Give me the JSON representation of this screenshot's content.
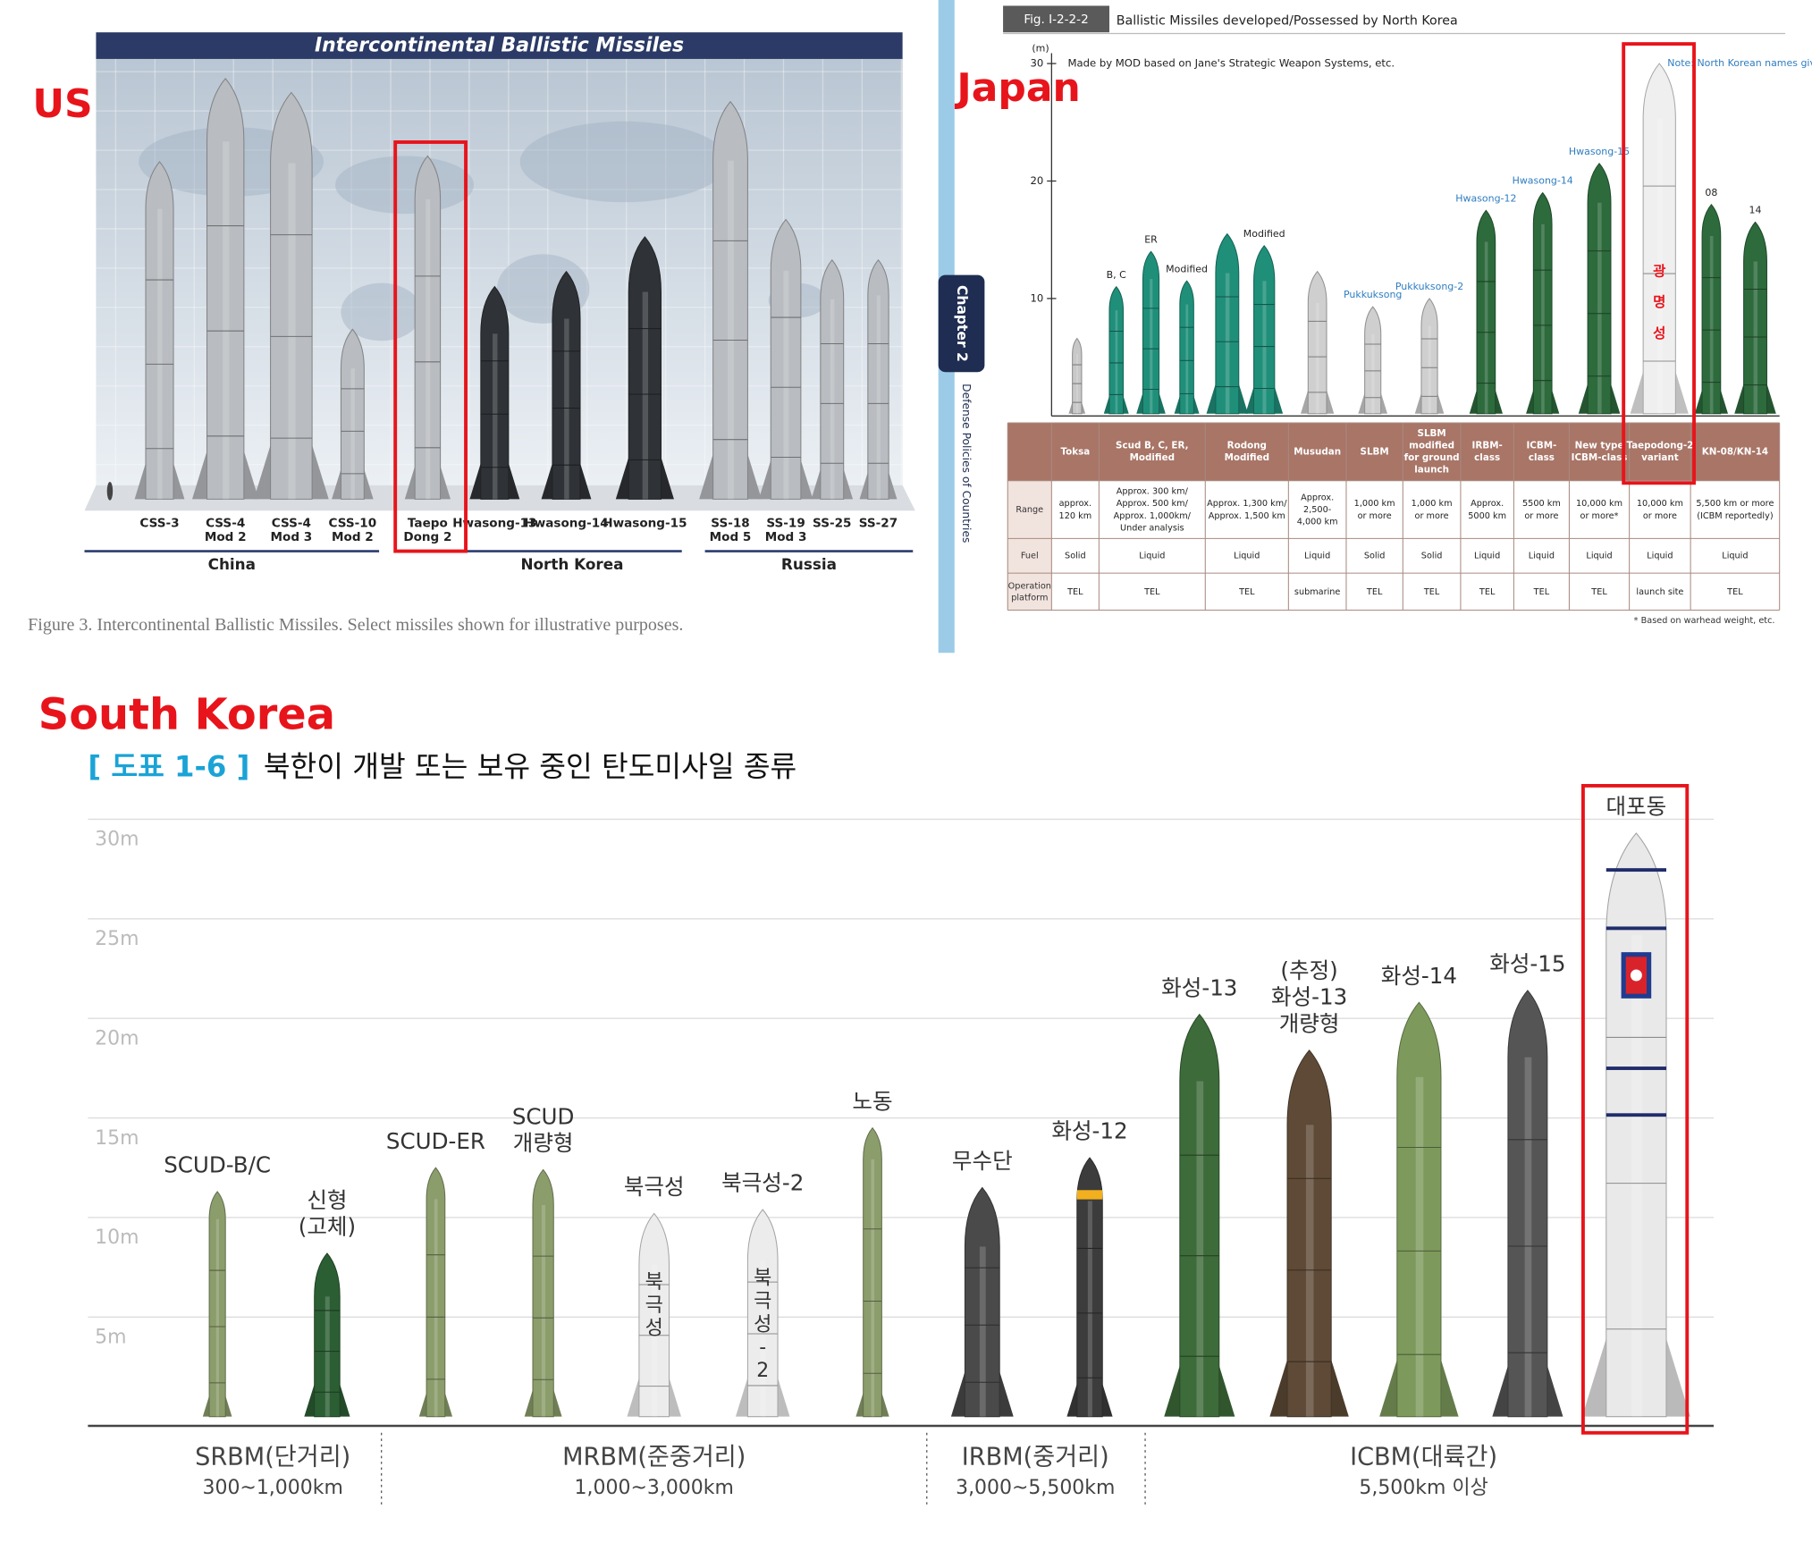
{
  "labels": {
    "us": "US",
    "japan": "Japan",
    "south_korea": "South Korea"
  },
  "us_figure": {
    "title": "Intercontinental Ballistic Missiles",
    "missiles": [
      [
        "CSS-3"
      ],
      [
        "CSS-4",
        "Mod 2"
      ],
      [
        "CSS-4",
        "Mod 3"
      ],
      [
        "CSS-10",
        "Mod 2"
      ],
      [
        "Taepo",
        "Dong 2"
      ],
      [
        "Hwasong-13"
      ],
      [
        "Hwasong-14"
      ],
      [
        "Hwasong-15"
      ],
      [
        "SS-18",
        "Mod 5"
      ],
      [
        "SS-19",
        "Mod 3"
      ],
      [
        "SS-25"
      ],
      [
        "SS-27"
      ]
    ],
    "groups": [
      "China",
      "North Korea",
      "Russia"
    ],
    "caption": "Figure 3. Intercontinental Ballistic Missiles. Select missiles shown for illustrative purposes."
  },
  "japan_figure": {
    "side_tab": "Chapter 2",
    "side_text": "Defense Policies of Countries",
    "figure_number": "Fig. I-2-2-2",
    "title": "Ballistic Missiles developed/Possessed by North Korea",
    "unit": "(m)",
    "source": "Made by MOD based on Jane's Strategic Weapon Systems, etc.",
    "note": "Note: North Korean names given in blue.",
    "ylim": [
      0,
      30
    ],
    "yticks": [
      10,
      20,
      30
    ],
    "missiles": [
      {
        "height": 6.6,
        "color": "#c8c8c8"
      },
      {
        "label": "B, C",
        "height": 11,
        "color": "#1f8f7a"
      },
      {
        "label": "ER",
        "height": 14,
        "color": "#1f8f7a"
      },
      {
        "label": "Modified",
        "height": 11.5,
        "color": "#1f8f7a"
      },
      {
        "height": 15.5,
        "color": "#1f8f7a"
      },
      {
        "label": "Modified",
        "height": 14.5,
        "color": "#1f8f7a"
      },
      {
        "height": 12.3,
        "color": "#cfcfcf"
      },
      {
        "label": "Pukkuksong",
        "label_color": "#2f7dc1",
        "height": 9.3,
        "color": "#cfcfcf"
      },
      {
        "label": "Pukkuksong-2",
        "label_color": "#2f7dc1",
        "height": 10,
        "color": "#cfcfcf"
      },
      {
        "label": "Hwasong-12",
        "label_color": "#2f7dc1",
        "height": 17.5,
        "color": "#2d6a3c"
      },
      {
        "label": "Hwasong-14",
        "label_color": "#2f7dc1",
        "height": 19,
        "color": "#2d6a3c"
      },
      {
        "label": "Hwasong-15",
        "label_color": "#2f7dc1",
        "height": 21.5,
        "color": "#2d6a3c"
      },
      {
        "body_text": [
          "광",
          "명",
          "성"
        ],
        "height": 30,
        "color": "#efefef"
      },
      {
        "label": "08",
        "height": 18,
        "color": "#2d6a3c"
      },
      {
        "label": "14",
        "height": 16.5,
        "color": "#2d6a3c"
      }
    ],
    "table": {
      "columns": [
        [
          "Toksa"
        ],
        [
          "Scud B, C, ER,",
          "Modified"
        ],
        [
          "Rodong",
          "Modified"
        ],
        [
          "Musudan"
        ],
        [
          "SLBM"
        ],
        [
          "SLBM",
          "modified",
          "for ground",
          "launch"
        ],
        [
          "IRBM-",
          "class"
        ],
        [
          "ICBM-",
          "class"
        ],
        [
          "New type",
          "ICBM-class"
        ],
        [
          "Taepodong-2",
          "variant"
        ],
        [
          "KN-08/KN-14"
        ]
      ],
      "rows": [
        {
          "header": [
            "Range"
          ],
          "cells": [
            [
              "approx.",
              "120 km"
            ],
            [
              "Approx. 300 km/",
              "Approx. 500 km/",
              "Approx. 1,000km/",
              "Under analysis"
            ],
            [
              "Approx. 1,300 km/",
              "Approx. 1,500 km"
            ],
            [
              "Approx.",
              "2,500-",
              "4,000 km"
            ],
            [
              "1,000 km",
              "or more"
            ],
            [
              "1,000 km",
              "or more"
            ],
            [
              "Approx.",
              "5000 km"
            ],
            [
              "5500 km",
              "or more"
            ],
            [
              "10,000 km",
              "or more*"
            ],
            [
              "10,000 km",
              "or more"
            ],
            [
              "5,500 km or more",
              "(ICBM reportedly)"
            ]
          ]
        },
        {
          "header": [
            "Fuel"
          ],
          "cells": [
            [
              "Solid"
            ],
            [
              "Liquid"
            ],
            [
              "Liquid"
            ],
            [
              "Liquid"
            ],
            [
              "Solid"
            ],
            [
              "Solid"
            ],
            [
              "Liquid"
            ],
            [
              "Liquid"
            ],
            [
              "Liquid"
            ],
            [
              "Liquid"
            ],
            [
              "Liquid"
            ]
          ]
        },
        {
          "header": [
            "Operation",
            "platform"
          ],
          "cells": [
            [
              "TEL"
            ],
            [
              "TEL"
            ],
            [
              "TEL"
            ],
            [
              "submarine"
            ],
            [
              "TEL"
            ],
            [
              "TEL"
            ],
            [
              "TEL"
            ],
            [
              "TEL"
            ],
            [
              "TEL"
            ],
            [
              "launch site"
            ],
            [
              "TEL"
            ]
          ]
        }
      ]
    },
    "footnote": "* Based on warhead weight, etc."
  },
  "korea_figure": {
    "number": "[ 도표 1-6 ]",
    "title": "북한이 개발 또는 보유 중인 탄도미사일 종류",
    "ylim": [
      0,
      30
    ],
    "yticks": [
      {
        "value": 5,
        "label": "5m"
      },
      {
        "value": 10,
        "label": "10m"
      },
      {
        "value": 15,
        "label": "15m"
      },
      {
        "value": 20,
        "label": "20m"
      },
      {
        "value": 25,
        "label": "25m"
      },
      {
        "value": 30,
        "label": "30m"
      }
    ],
    "missiles": [
      {
        "name": [
          "SCUD-B/C"
        ],
        "height": 11.3,
        "color": "#8c9d6c"
      },
      {
        "name": [
          "신형",
          "(고체)"
        ],
        "height": 8.2,
        "color": "#2c5e34"
      },
      {
        "name": [
          "SCUD-ER"
        ],
        "height": 12.5,
        "color": "#8c9d6c"
      },
      {
        "name": [
          "SCUD",
          "개량형"
        ],
        "height": 12.4,
        "color": "#8c9d6c"
      },
      {
        "name": [
          "북극성"
        ],
        "height": 10.2,
        "color": "#ececec",
        "body_text": [
          "북",
          "극",
          "성"
        ]
      },
      {
        "name": [
          "북극성-2"
        ],
        "height": 10.4,
        "color": "#ececec",
        "body_text": [
          "북",
          "극",
          "성",
          "-",
          "2"
        ]
      },
      {
        "name": [
          "노동"
        ],
        "height": 14.5,
        "color": "#8c9d6c"
      },
      {
        "name": [
          "무수단"
        ],
        "height": 11.5,
        "color": "#4a4a4a"
      },
      {
        "name": [
          "화성-12"
        ],
        "height": 13,
        "color": "#3c3c3c"
      },
      {
        "name": [
          "화성-13"
        ],
        "height": 20.2,
        "color": "#3d6b3a"
      },
      {
        "name": [
          "(추정)",
          "화성-13",
          "개량형"
        ],
        "height": 18.4,
        "color": "#5e4a36"
      },
      {
        "name": [
          "화성-14"
        ],
        "height": 20.8,
        "color": "#7d9a5c"
      },
      {
        "name": [
          "화성-15"
        ],
        "height": 21.4,
        "color": "#555555"
      },
      {
        "name": [
          "대포동"
        ],
        "height": 29.3,
        "color": "#e9e9ea"
      }
    ],
    "groups": [
      {
        "name": "SRBM(단거리)",
        "range": "300~1,000km"
      },
      {
        "name": "MRBM(준중거리)",
        "range": "1,000~3,000km"
      },
      {
        "name": "IRBM(중거리)",
        "range": "3,000~5,500km"
      },
      {
        "name": "ICBM(대륙간)",
        "range": "5,500km 이상"
      }
    ]
  }
}
